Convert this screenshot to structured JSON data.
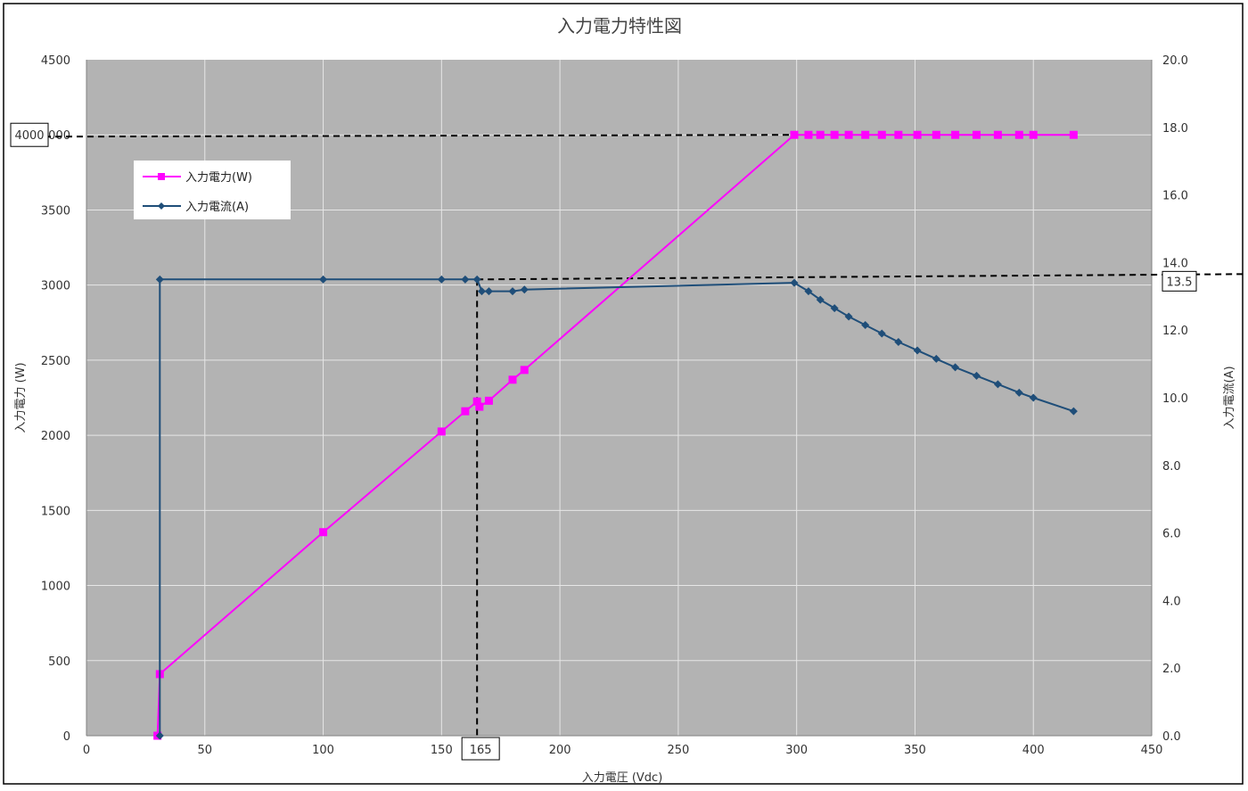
{
  "chart_data": {
    "type": "line",
    "title": "入力電力特性図",
    "xlabel": "入力電圧 (Vdc)",
    "ylabel_left": "入力電力 (W)",
    "ylabel_right": "入力電流(A)",
    "xlim": [
      0,
      450
    ],
    "ylim_left": [
      0,
      4500
    ],
    "ylim_right": [
      0,
      20
    ],
    "x_ticks": [
      "0",
      "50",
      "100",
      "150",
      "200",
      "250",
      "300",
      "350",
      "400",
      "450"
    ],
    "y_left_ticks": [
      "0",
      "500",
      "1000",
      "1500",
      "2000",
      "2500",
      "3000",
      "3500",
      "4000",
      "4500"
    ],
    "y_right_ticks": [
      "0.0",
      "2.0",
      "4.0",
      "6.0",
      "8.0",
      "10.0",
      "12.0",
      "14.0",
      "16.0",
      "18.0",
      "20.0"
    ],
    "grid": true,
    "legend_position": "top-left",
    "series": [
      {
        "name": "入力電力(W)",
        "axis": "left",
        "color": "#ff00ff",
        "marker": "square",
        "x": [
          30,
          31,
          100,
          150,
          160,
          165,
          166,
          170,
          180,
          185,
          299,
          305,
          310,
          316,
          322,
          329,
          336,
          343,
          351,
          359,
          367,
          376,
          385,
          394,
          400,
          417
        ],
        "y": [
          0,
          410,
          1355,
          2025,
          2160,
          2225,
          2190,
          2230,
          2370,
          2435,
          4000,
          4000,
          4000,
          4000,
          4000,
          4000,
          4000,
          4000,
          4000,
          4000,
          4000,
          4000,
          4000,
          4000,
          4000,
          4000
        ]
      },
      {
        "name": "入力電流(A)",
        "axis": "right",
        "color": "#1f4e79",
        "marker": "diamond",
        "x": [
          31,
          31,
          100,
          150,
          160,
          165,
          167,
          170,
          180,
          185,
          299,
          305,
          310,
          316,
          322,
          329,
          336,
          343,
          351,
          359,
          367,
          376,
          385,
          394,
          400,
          417
        ],
        "y": [
          0,
          13.5,
          13.5,
          13.5,
          13.5,
          13.5,
          13.15,
          13.15,
          13.15,
          13.2,
          13.4,
          13.15,
          12.9,
          12.65,
          12.4,
          12.15,
          11.9,
          11.65,
          11.4,
          11.15,
          10.9,
          10.65,
          10.4,
          10.15,
          10.0,
          9.6
        ]
      }
    ],
    "annotations": [
      {
        "label": "4000",
        "axis": "left",
        "value": 4000
      },
      {
        "label": "13.5",
        "axis": "right",
        "value": 13.5
      },
      {
        "label": "165",
        "axis": "x",
        "value": 165
      }
    ]
  }
}
